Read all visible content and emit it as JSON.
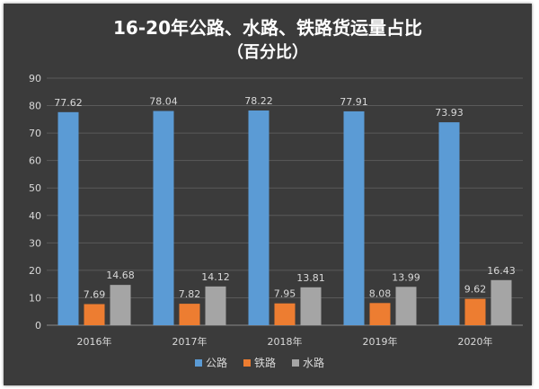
{
  "chart_data": {
    "type": "bar",
    "title": [
      "16-20年公路、水路、铁路货运量占比",
      "（百分比）"
    ],
    "categories": [
      "2016年",
      "2017年",
      "2018年",
      "2019年",
      "2020年"
    ],
    "series": [
      {
        "name": "公路",
        "values": [
          77.62,
          78.04,
          78.22,
          77.91,
          73.93
        ],
        "color": "#5b9bd5"
      },
      {
        "name": "铁路",
        "values": [
          7.69,
          7.82,
          7.95,
          8.08,
          9.62
        ],
        "color": "#ed7d31"
      },
      {
        "name": "水路",
        "values": [
          14.68,
          14.12,
          13.81,
          13.99,
          16.43
        ],
        "color": "#a5a5a5"
      }
    ],
    "data_labels": [
      [
        "77.62",
        "78.04",
        "78.22",
        "77.91",
        "73.93"
      ],
      [
        "7.69",
        "7.82",
        "7.95",
        "8.08",
        "9.62"
      ],
      [
        "14.68",
        "14.12",
        "13.81",
        "13.99",
        "16.43"
      ]
    ],
    "y_ticks": [
      "0",
      "10",
      "20",
      "30",
      "40",
      "50",
      "60",
      "70",
      "80",
      "90"
    ],
    "ylim": [
      0,
      90
    ],
    "xlabel": "",
    "ylabel": "",
    "grid": true,
    "legend_position": "bottom",
    "background_color": "#3b3b3b",
    "grid_color": "#5a5a5a",
    "text_color": "#d9d9d9"
  }
}
